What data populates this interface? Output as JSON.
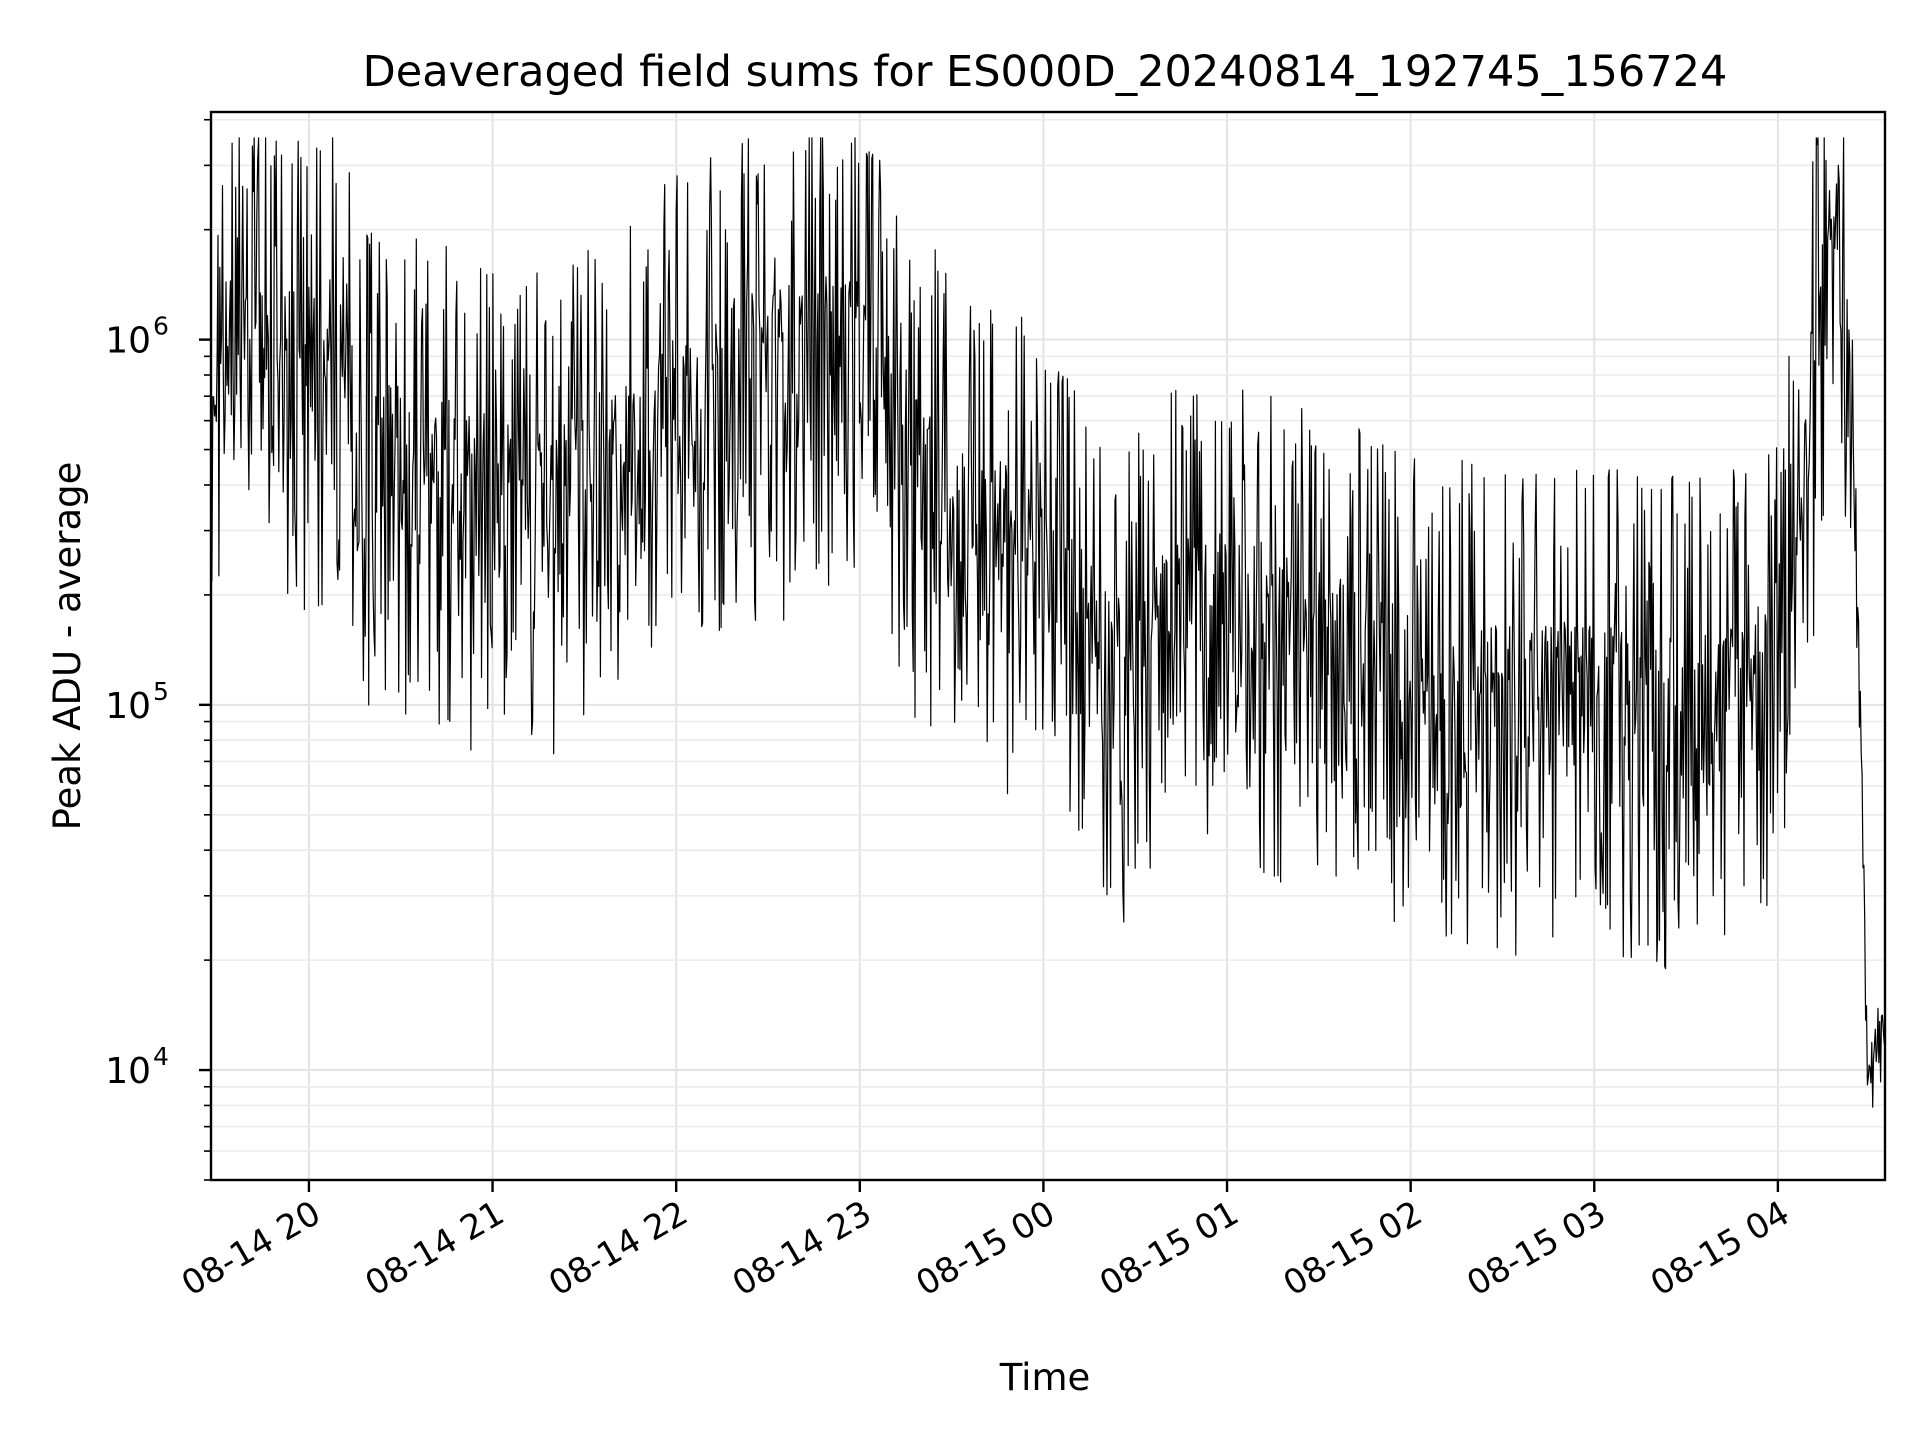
{
  "chart_data": {
    "type": "line",
    "title": "Deaveraged field sums for ES000D_20240814_192745_156724",
    "xlabel": "Time",
    "ylabel": "Peak ADU - average",
    "y_scale": "log",
    "ylim": [
      5000,
      4200000
    ],
    "xlim": [
      "2024-08-14 19:28",
      "2024-08-15 04:35"
    ],
    "grid": true,
    "legend": false,
    "x_tick_labels": [
      "08-14 20",
      "08-14 21",
      "08-14 22",
      "08-14 23",
      "08-15 00",
      "08-15 01",
      "08-15 02",
      "08-15 03",
      "08-15 04"
    ],
    "x_ticks": [
      "2024-08-14 20:00",
      "2024-08-14 21:00",
      "2024-08-14 22:00",
      "2024-08-14 23:00",
      "2024-08-15 00:00",
      "2024-08-15 01:00",
      "2024-08-15 02:00",
      "2024-08-15 03:00",
      "2024-08-15 04:00"
    ],
    "y_ticks": [
      {
        "value": 10000,
        "base": "10",
        "exp": "4"
      },
      {
        "value": 100000,
        "base": "10",
        "exp": "5"
      },
      {
        "value": 1000000,
        "base": "10",
        "exp": "6"
      }
    ],
    "series": [
      {
        "color": "#000000",
        "points": [
          [
            "2024-08-14 19:28",
            450000
          ],
          [
            "2024-08-14 19:33",
            800000
          ],
          [
            "2024-08-14 19:38",
            850000
          ],
          [
            "2024-08-14 19:43",
            900000
          ],
          [
            "2024-08-14 19:48",
            720000
          ],
          [
            "2024-08-14 19:53",
            750000
          ],
          [
            "2024-08-14 19:58",
            780000
          ],
          [
            "2024-08-14 20:03",
            800000
          ],
          [
            "2024-08-14 20:08",
            820000
          ],
          [
            "2024-08-14 20:13",
            600000
          ],
          [
            "2024-08-14 20:18",
            400000
          ],
          [
            "2024-08-14 20:23",
            450000
          ],
          [
            "2024-08-14 20:28",
            420000
          ],
          [
            "2024-08-14 20:33",
            380000
          ],
          [
            "2024-08-14 20:38",
            400000
          ],
          [
            "2024-08-14 20:43",
            380000
          ],
          [
            "2024-08-14 20:48",
            360000
          ],
          [
            "2024-08-14 20:53",
            340000
          ],
          [
            "2024-08-14 20:58",
            350000
          ],
          [
            "2024-08-14 21:03",
            330000
          ],
          [
            "2024-08-14 21:08",
            320000
          ],
          [
            "2024-08-14 21:13",
            310000
          ],
          [
            "2024-08-14 21:18",
            300000
          ],
          [
            "2024-08-14 21:23",
            320000
          ],
          [
            "2024-08-14 21:28",
            350000
          ],
          [
            "2024-08-14 21:33",
            380000
          ],
          [
            "2024-08-14 21:38",
            400000
          ],
          [
            "2024-08-14 21:43",
            420000
          ],
          [
            "2024-08-14 21:48",
            450000
          ],
          [
            "2024-08-14 21:53",
            500000
          ],
          [
            "2024-08-14 21:58",
            560000
          ],
          [
            "2024-08-14 22:03",
            600000
          ],
          [
            "2024-08-14 22:08",
            620000
          ],
          [
            "2024-08-14 22:13",
            650000
          ],
          [
            "2024-08-14 22:18",
            700000
          ],
          [
            "2024-08-14 22:23",
            720000
          ],
          [
            "2024-08-14 22:28",
            740000
          ],
          [
            "2024-08-14 22:33",
            760000
          ],
          [
            "2024-08-14 22:38",
            780000
          ],
          [
            "2024-08-14 22:43",
            800000
          ],
          [
            "2024-08-14 22:48",
            820000
          ],
          [
            "2024-08-14 22:53",
            850000
          ],
          [
            "2024-08-14 22:58",
            800000
          ],
          [
            "2024-08-14 23:03",
            700000
          ],
          [
            "2024-08-14 23:08",
            600000
          ],
          [
            "2024-08-14 23:13",
            500000
          ],
          [
            "2024-08-14 23:18",
            420000
          ],
          [
            "2024-08-14 23:23",
            380000
          ],
          [
            "2024-08-14 23:28",
            340000
          ],
          [
            "2024-08-14 23:33",
            300000
          ],
          [
            "2024-08-14 23:38",
            280000
          ],
          [
            "2024-08-14 23:43",
            260000
          ],
          [
            "2024-08-14 23:48",
            250000
          ],
          [
            "2024-08-14 23:53",
            230000
          ],
          [
            "2024-08-14 23:58",
            200000
          ],
          [
            "2024-08-15 00:03",
            180000
          ],
          [
            "2024-08-15 00:08",
            160000
          ],
          [
            "2024-08-15 00:13",
            150000
          ],
          [
            "2024-08-15 00:18",
            130000
          ],
          [
            "2024-08-15 00:23",
            110000
          ],
          [
            "2024-08-15 00:28",
            100000
          ],
          [
            "2024-08-15 00:33",
            120000
          ],
          [
            "2024-08-15 00:38",
            140000
          ],
          [
            "2024-08-15 00:43",
            150000
          ],
          [
            "2024-08-15 00:48",
            160000
          ],
          [
            "2024-08-15 00:53",
            170000
          ],
          [
            "2024-08-15 00:58",
            165000
          ],
          [
            "2024-08-15 01:03",
            160000
          ],
          [
            "2024-08-15 01:08",
            155000
          ],
          [
            "2024-08-15 01:13",
            150000
          ],
          [
            "2024-08-15 01:18",
            145000
          ],
          [
            "2024-08-15 01:23",
            140000
          ],
          [
            "2024-08-15 01:28",
            130000
          ],
          [
            "2024-08-15 01:33",
            125000
          ],
          [
            "2024-08-15 01:38",
            120000
          ],
          [
            "2024-08-15 01:43",
            115000
          ],
          [
            "2024-08-15 01:48",
            110000
          ],
          [
            "2024-08-15 01:53",
            105000
          ],
          [
            "2024-08-15 01:58",
            100000
          ],
          [
            "2024-08-15 02:03",
            98000
          ],
          [
            "2024-08-15 02:08",
            96000
          ],
          [
            "2024-08-15 02:13",
            95000
          ],
          [
            "2024-08-15 02:18",
            94000
          ],
          [
            "2024-08-15 02:23",
            93000
          ],
          [
            "2024-08-15 02:28",
            92000
          ],
          [
            "2024-08-15 02:33",
            92000
          ],
          [
            "2024-08-15 02:38",
            92000
          ],
          [
            "2024-08-15 02:43",
            93000
          ],
          [
            "2024-08-15 02:48",
            93000
          ],
          [
            "2024-08-15 02:53",
            92000
          ],
          [
            "2024-08-15 02:58",
            91000
          ],
          [
            "2024-08-15 03:03",
            90000
          ],
          [
            "2024-08-15 03:08",
            90000
          ],
          [
            "2024-08-15 03:13",
            88000
          ],
          [
            "2024-08-15 03:18",
            86000
          ],
          [
            "2024-08-15 03:23",
            85000
          ],
          [
            "2024-08-15 03:28",
            85000
          ],
          [
            "2024-08-15 03:33",
            86000
          ],
          [
            "2024-08-15 03:38",
            88000
          ],
          [
            "2024-08-15 03:43",
            90000
          ],
          [
            "2024-08-15 03:48",
            95000
          ],
          [
            "2024-08-15 03:53",
            105000
          ],
          [
            "2024-08-15 03:58",
            125000
          ],
          [
            "2024-08-15 04:03",
            180000
          ],
          [
            "2024-08-15 04:08",
            300000
          ],
          [
            "2024-08-15 04:11",
            600000
          ],
          [
            "2024-08-15 04:14",
            1000000
          ],
          [
            "2024-08-15 04:17",
            1500000
          ],
          [
            "2024-08-15 04:19",
            2200000
          ],
          [
            "2024-08-15 04:21",
            1200000
          ],
          [
            "2024-08-15 04:23",
            800000
          ],
          [
            "2024-08-15 04:25",
            450000
          ],
          [
            "2024-08-15 04:27",
            80000
          ],
          [
            "2024-08-15 04:29",
            13000
          ],
          [
            "2024-08-15 04:31",
            11000
          ],
          [
            "2024-08-15 04:33",
            12000
          ],
          [
            "2024-08-15 04:35",
            11500
          ]
        ]
      }
    ]
  }
}
